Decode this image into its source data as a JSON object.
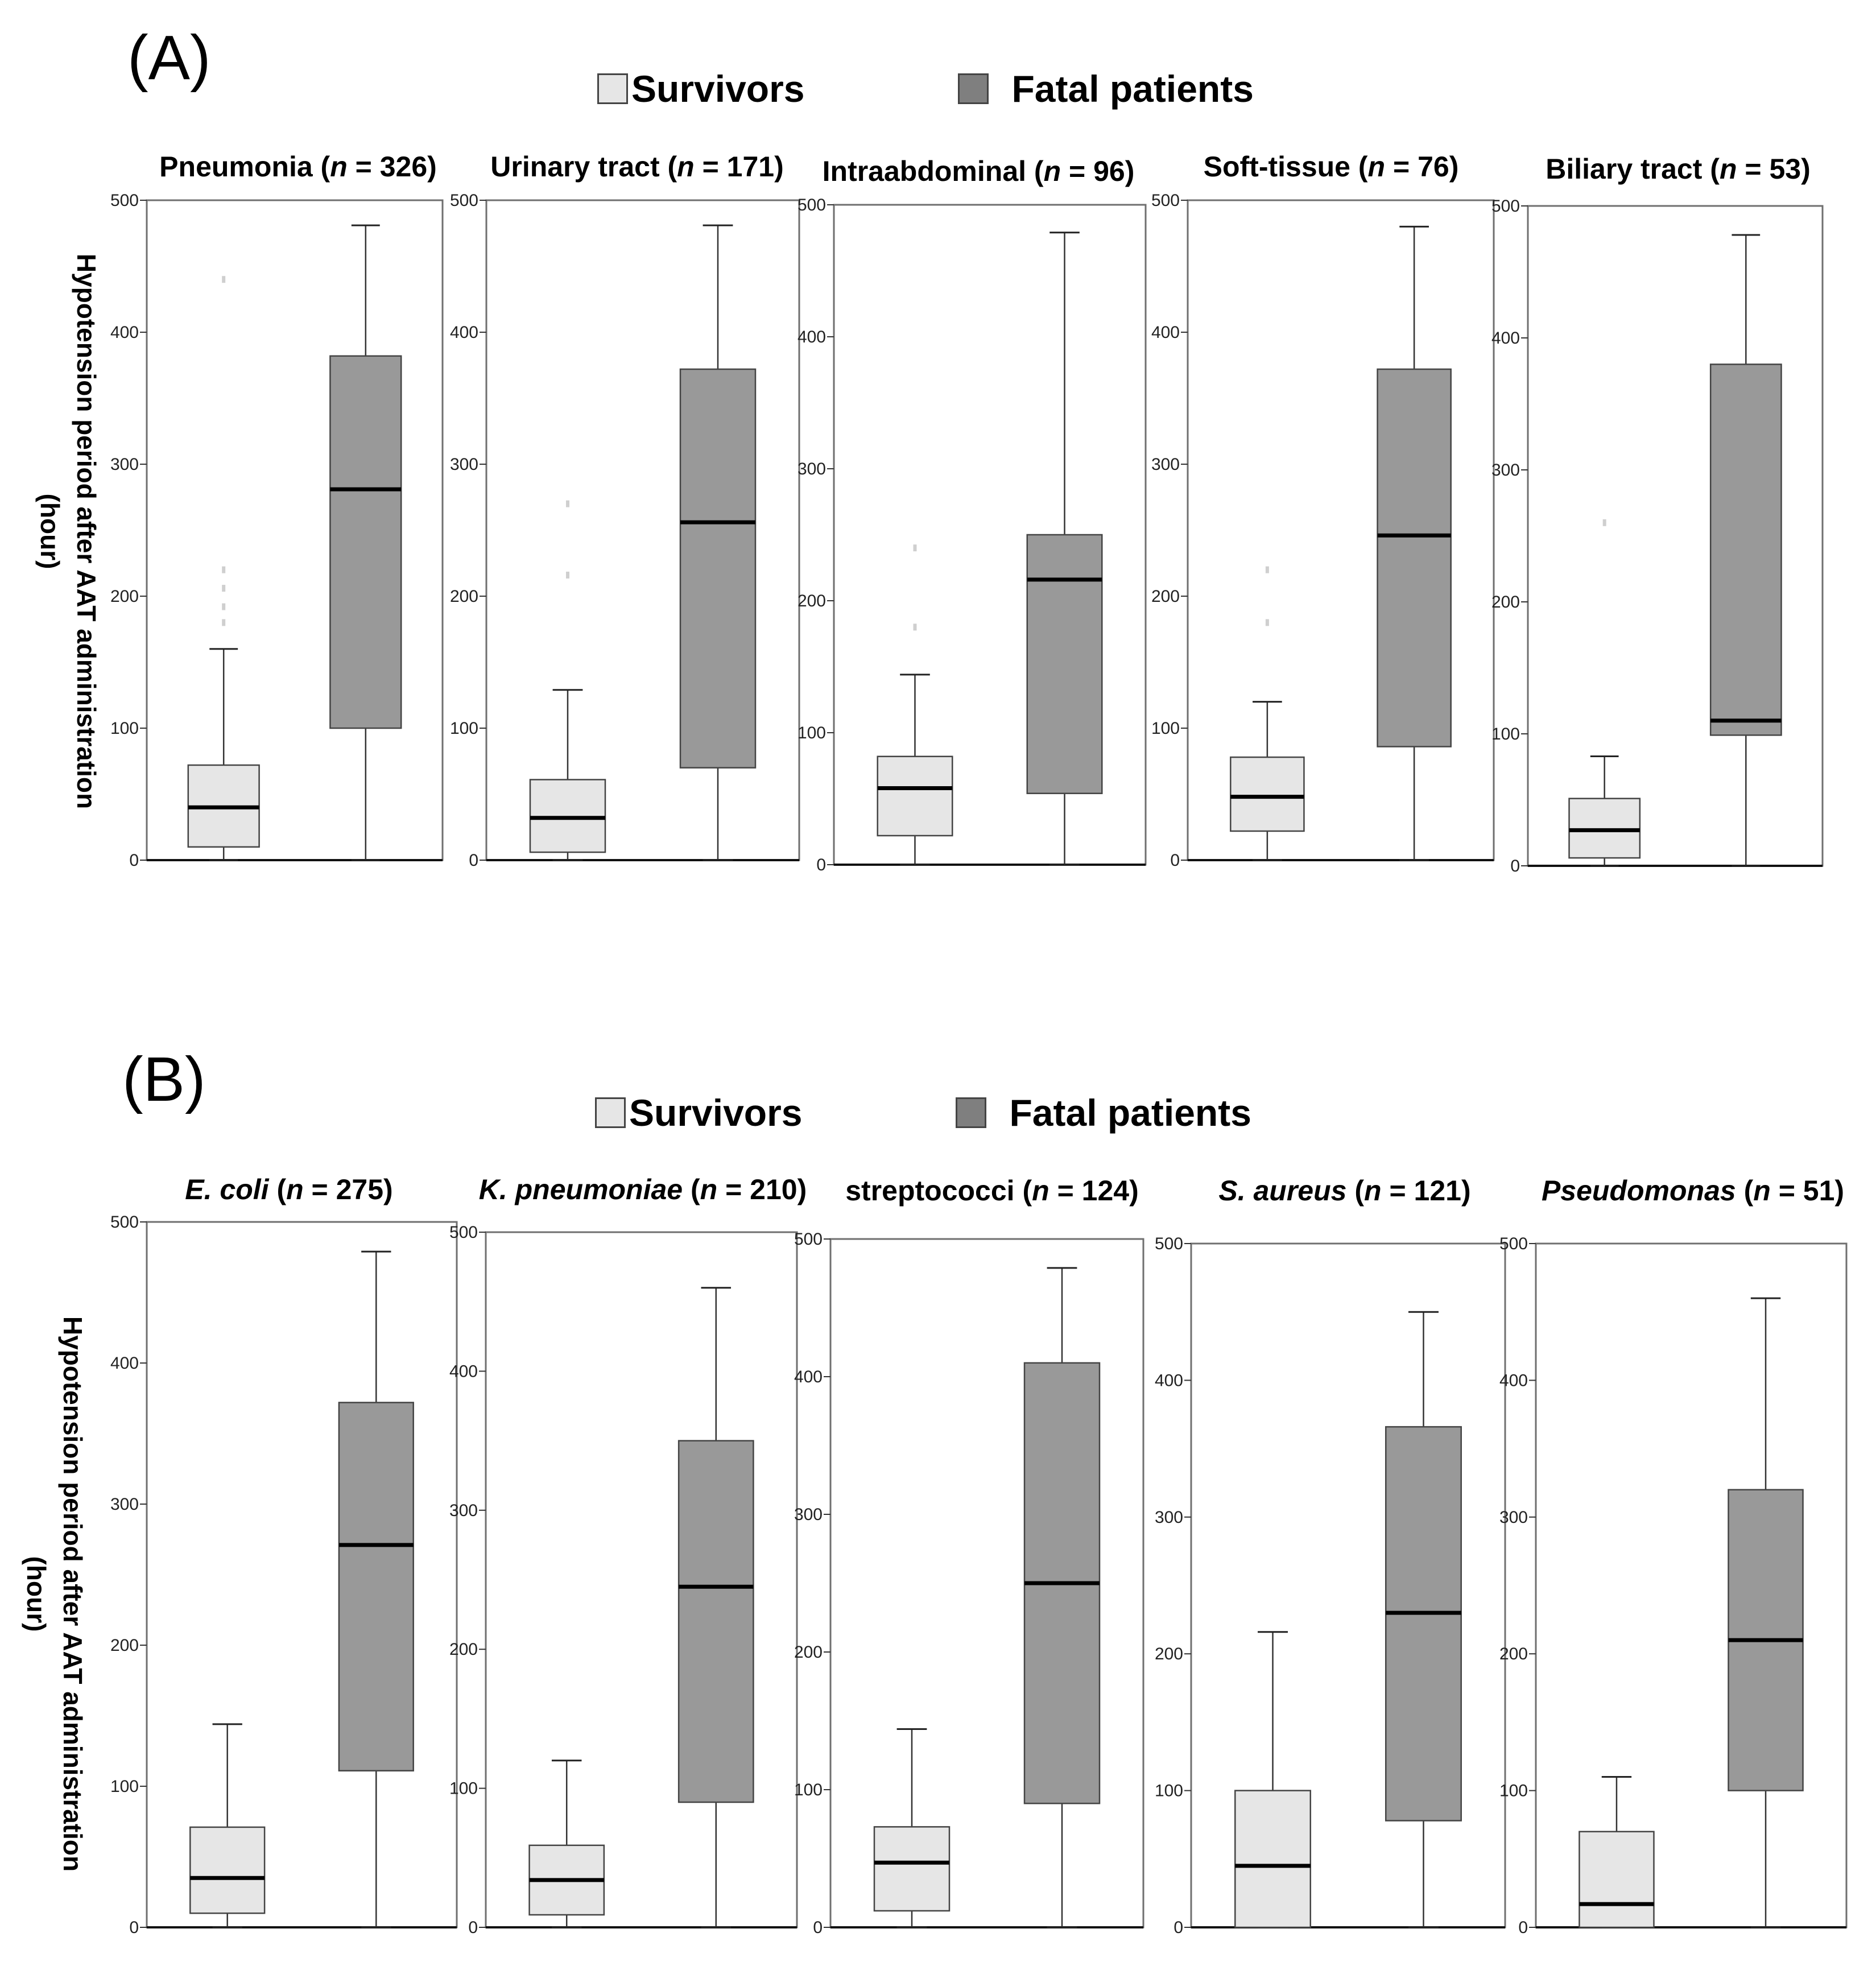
{
  "panels": [
    {
      "label": "(A)",
      "legend": {
        "survivors": "Survivors",
        "fatal": "Fatal patients"
      },
      "ylabel_line1": "Hypotension period after AAT administration",
      "ylabel_line2": "(hour)"
    },
    {
      "label": "(B)",
      "legend": {
        "survivors": "Survivors",
        "fatal": "Fatal patients"
      },
      "ylabel_line1": "Hypotension period after AAT administration",
      "ylabel_line2": "(hour)"
    }
  ],
  "colors": {
    "survivors": "#e6e6e6",
    "fatal": "#999999"
  },
  "chart_data": [
    {
      "type": "boxplot",
      "panel": "A",
      "title_pre": "Pneumonia (",
      "title_em": "n",
      "title_post": " = 326)",
      "title_italic": false,
      "ylim": [
        0,
        500
      ],
      "yticks": [
        "0",
        "100",
        "200",
        "300",
        "400",
        "500"
      ],
      "ylabel": "Hypotension period after AAT administration (hour)",
      "series": [
        {
          "name": "Survivors",
          "whisker_low": 0,
          "q1": 10,
          "median": 40,
          "q3": 72,
          "whisker_high": 160,
          "outliers": [
            180,
            192,
            206,
            220,
            440
          ]
        },
        {
          "name": "Fatal patients",
          "whisker_low": 0,
          "q1": 100,
          "median": 281,
          "q3": 382,
          "whisker_high": 481,
          "outliers": []
        }
      ]
    },
    {
      "type": "boxplot",
      "panel": "A",
      "title_pre": "Urinary tract (",
      "title_em": "n",
      "title_post": " = 171)",
      "title_italic": false,
      "ylim": [
        0,
        500
      ],
      "yticks": [
        "0",
        "100",
        "200",
        "300",
        "400",
        "500"
      ],
      "ylabel": "Hypotension period after AAT administration (hour)",
      "series": [
        {
          "name": "Survivors",
          "whisker_low": 0,
          "q1": 6,
          "median": 32,
          "q3": 61,
          "whisker_high": 129,
          "outliers": [
            216,
            270
          ]
        },
        {
          "name": "Fatal patients",
          "whisker_low": 0,
          "q1": 70,
          "median": 256,
          "q3": 372,
          "whisker_high": 481,
          "outliers": []
        }
      ]
    },
    {
      "type": "boxplot",
      "panel": "A",
      "title_pre": "Intraabdominal (",
      "title_em": "n",
      "title_post": " = 96)",
      "title_italic": false,
      "ylim": [
        0,
        500
      ],
      "yticks": [
        "0",
        "100",
        "200",
        "300",
        "400",
        "500"
      ],
      "ylabel": "Hypotension period after AAT administration (hour)",
      "series": [
        {
          "name": "Survivors",
          "whisker_low": 0,
          "q1": 22,
          "median": 58,
          "q3": 82,
          "whisker_high": 144,
          "outliers": [
            180,
            240
          ]
        },
        {
          "name": "Fatal patients",
          "whisker_low": 0,
          "q1": 54,
          "median": 216,
          "q3": 250,
          "whisker_high": 479,
          "outliers": []
        }
      ]
    },
    {
      "type": "boxplot",
      "panel": "A",
      "title_pre": "Soft-tissue (",
      "title_em": "n",
      "title_post": " = 76)",
      "title_italic": false,
      "ylim": [
        0,
        500
      ],
      "yticks": [
        "0",
        "100",
        "200",
        "300",
        "400",
        "500"
      ],
      "ylabel": "Hypotension period after AAT administration (hour)",
      "series": [
        {
          "name": "Survivors",
          "whisker_low": 0,
          "q1": 22,
          "median": 48,
          "q3": 78,
          "whisker_high": 120,
          "outliers": [
            180,
            220
          ]
        },
        {
          "name": "Fatal patients",
          "whisker_low": 0,
          "q1": 86,
          "median": 246,
          "q3": 372,
          "whisker_high": 480,
          "outliers": []
        }
      ]
    },
    {
      "type": "boxplot",
      "panel": "A",
      "title_pre": "Biliary tract (",
      "title_em": "n",
      "title_post": " = 53)",
      "title_italic": false,
      "ylim": [
        0,
        500
      ],
      "yticks": [
        "0",
        "100",
        "200",
        "300",
        "400",
        "500"
      ],
      "ylabel": "Hypotension period after AAT administration (hour)",
      "series": [
        {
          "name": "Survivors",
          "whisker_low": 0,
          "q1": 6,
          "median": 27,
          "q3": 51,
          "whisker_high": 83,
          "outliers": [
            260
          ]
        },
        {
          "name": "Fatal patients",
          "whisker_low": 0,
          "q1": 99,
          "median": 110,
          "q3": 380,
          "whisker_high": 478,
          "outliers": []
        }
      ]
    },
    {
      "type": "boxplot",
      "panel": "B",
      "title_pre": "E. coli",
      "title_em": "n",
      "title_post": " = 275)",
      "title_italic": true,
      "ylim": [
        0,
        500
      ],
      "yticks": [
        "0",
        "100",
        "200",
        "300",
        "400",
        "500"
      ],
      "ylabel": "Hypotension period after AAT administration (hour)",
      "series": [
        {
          "name": "Survivors",
          "whisker_low": 0,
          "q1": 10,
          "median": 35,
          "q3": 71,
          "whisker_high": 144,
          "outliers": []
        },
        {
          "name": "Fatal patients",
          "whisker_low": 0,
          "q1": 111,
          "median": 271,
          "q3": 372,
          "whisker_high": 479,
          "outliers": []
        }
      ]
    },
    {
      "type": "boxplot",
      "panel": "B",
      "title_pre": "K. pneumoniae",
      "title_em": "n",
      "title_post": " = 210)",
      "title_italic": true,
      "ylim": [
        0,
        500
      ],
      "yticks": [
        "0",
        "100",
        "200",
        "300",
        "400",
        "500"
      ],
      "ylabel": "Hypotension period after AAT administration (hour)",
      "series": [
        {
          "name": "Survivors",
          "whisker_low": 0,
          "q1": 9,
          "median": 34,
          "q3": 59,
          "whisker_high": 120,
          "outliers": []
        },
        {
          "name": "Fatal patients",
          "whisker_low": 0,
          "q1": 90,
          "median": 245,
          "q3": 350,
          "whisker_high": 460,
          "outliers": []
        }
      ]
    },
    {
      "type": "boxplot",
      "panel": "B",
      "title_pre": "streptococci",
      "title_em": "n",
      "title_post": " = 124)",
      "title_italic": false,
      "ylim": [
        0,
        500
      ],
      "yticks": [
        "0",
        "100",
        "200",
        "300",
        "400",
        "500"
      ],
      "ylabel": "Hypotension period after AAT administration (hour)",
      "series": [
        {
          "name": "Survivors",
          "whisker_low": 0,
          "q1": 12,
          "median": 47,
          "q3": 73,
          "whisker_high": 144,
          "outliers": []
        },
        {
          "name": "Fatal patients",
          "whisker_low": 0,
          "q1": 90,
          "median": 250,
          "q3": 410,
          "whisker_high": 479,
          "outliers": []
        }
      ]
    },
    {
      "type": "boxplot",
      "panel": "B",
      "title_pre": "S. aureus",
      "title_em": "n",
      "title_post": " = 121)",
      "title_italic": true,
      "ylim": [
        0,
        500
      ],
      "yticks": [
        "0",
        "100",
        "200",
        "300",
        "400",
        "500"
      ],
      "ylabel": "Hypotension period after AAT administration (hour)",
      "series": [
        {
          "name": "Survivors",
          "whisker_low": 0,
          "q1": 0,
          "median": 45,
          "q3": 100,
          "whisker_high": 216,
          "outliers": []
        },
        {
          "name": "Fatal patients",
          "whisker_low": 0,
          "q1": 78,
          "median": 230,
          "q3": 366,
          "whisker_high": 450,
          "outliers": []
        }
      ]
    },
    {
      "type": "boxplot",
      "panel": "B",
      "title_pre": "Pseudomonas",
      "title_em": "n",
      "title_post": " = 51)",
      "title_italic": true,
      "ylim": [
        0,
        500
      ],
      "yticks": [
        "0",
        "100",
        "200",
        "300",
        "400",
        "500"
      ],
      "ylabel": "Hypotension period after AAT administration (hour)",
      "series": [
        {
          "name": "Survivors",
          "whisker_low": 0,
          "q1": 0,
          "median": 17,
          "q3": 70,
          "whisker_high": 110,
          "outliers": []
        },
        {
          "name": "Fatal patients",
          "whisker_low": 0,
          "q1": 100,
          "median": 210,
          "q3": 320,
          "whisker_high": 460,
          "outliers": []
        }
      ]
    }
  ]
}
